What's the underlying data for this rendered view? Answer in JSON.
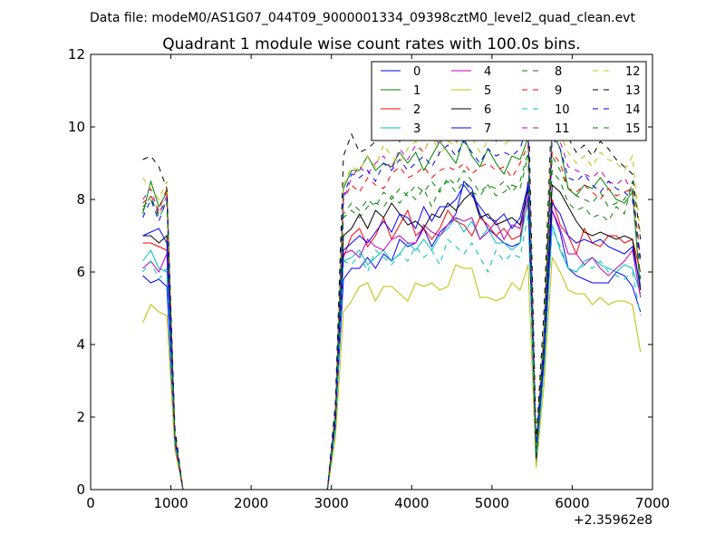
{
  "chart_data": {
    "type": "line",
    "suptitle": "Data file: modeM0/AS1G07_044T09_9000001334_09398cztM0_level2_quad_clean.evt",
    "title": "Quadrant 1 module wise count rates with 100.0s bins.",
    "xlabel": "",
    "ylabel": "",
    "x_offset_label": "+2.35962e8",
    "xlim": [
      0,
      7000
    ],
    "ylim": [
      0,
      12
    ],
    "xticks": [
      0,
      1000,
      2000,
      3000,
      4000,
      5000,
      6000,
      7000
    ],
    "yticks": [
      0,
      2,
      4,
      6,
      8,
      10,
      12
    ],
    "grid": false,
    "legend_position": "top-right",
    "legend_columns": 4,
    "x": [
      650,
      750,
      850,
      950,
      1050,
      1150,
      1250,
      1350,
      1450,
      1550,
      1650,
      1750,
      1850,
      1950,
      2050,
      2150,
      2250,
      2350,
      2450,
      2550,
      2650,
      2750,
      2850,
      2950,
      3050,
      3150,
      3250,
      3350,
      3450,
      3550,
      3650,
      3750,
      3850,
      3950,
      4050,
      4150,
      4250,
      4350,
      4450,
      4550,
      4650,
      4750,
      4850,
      4950,
      5050,
      5150,
      5250,
      5350,
      5450,
      5550,
      5650,
      5750,
      5850,
      5950,
      6050,
      6150,
      6250,
      6350,
      6450,
      6550,
      6650,
      6750,
      6850
    ],
    "series": [
      {
        "name": "0",
        "color": "#0000ff",
        "dash": "solid",
        "values": [
          5.9,
          5.7,
          5.8,
          5.6,
          1.2,
          0,
          0,
          0,
          0,
          0,
          0,
          0,
          0,
          0,
          0,
          0,
          0,
          0,
          0,
          0,
          0,
          0,
          0,
          0,
          1.8,
          5.8,
          6.1,
          6.1,
          6.4,
          6.1,
          6.5,
          6.3,
          6.9,
          6.7,
          6.8,
          7.2,
          6.7,
          7.1,
          7.3,
          7.6,
          8.5,
          8.3,
          7.6,
          7.2,
          7.0,
          6.8,
          6.7,
          6.8,
          8.5,
          1.0,
          3.6,
          7.7,
          7.1,
          6.1,
          5.9,
          5.8,
          5.7,
          5.7,
          5.7,
          6.0,
          5.9,
          5.6,
          4.9
        ]
      },
      {
        "name": "1",
        "color": "#008000",
        "dash": "solid",
        "values": [
          7.6,
          8.5,
          7.8,
          8.2,
          1.5,
          0,
          0,
          0,
          0,
          0,
          0,
          0,
          0,
          0,
          0,
          0,
          0,
          0,
          0,
          0,
          0,
          0,
          0,
          0,
          2.2,
          8.3,
          8.8,
          8.8,
          9.2,
          8.8,
          9.0,
          8.9,
          9.3,
          9.0,
          9.3,
          8.8,
          9.2,
          9.6,
          9.3,
          9.0,
          9.7,
          9.2,
          8.9,
          9.4,
          9.0,
          8.7,
          9.2,
          9.1,
          9.7,
          1.2,
          4.4,
          9.9,
          9.4,
          8.3,
          8.1,
          8.4,
          8.3,
          8.6,
          8.3,
          8.0,
          7.9,
          8.2,
          5.5
        ]
      },
      {
        "name": "2",
        "color": "#ff0000",
        "dash": "solid",
        "values": [
          6.8,
          6.8,
          6.7,
          6.6,
          1.4,
          0,
          0,
          0,
          0,
          0,
          0,
          0,
          0,
          0,
          0,
          0,
          0,
          0,
          0,
          0,
          0,
          0,
          0,
          0,
          1.9,
          6.4,
          7.0,
          7.2,
          6.7,
          7.0,
          7.5,
          6.9,
          7.3,
          7.7,
          7.0,
          7.2,
          6.9,
          7.2,
          7.7,
          7.4,
          7.3,
          7.0,
          7.5,
          7.3,
          7.0,
          7.2,
          6.9,
          7.0,
          7.9,
          0.9,
          3.9,
          8.0,
          7.3,
          7.0,
          6.5,
          7.2,
          6.8,
          6.7,
          7.0,
          7.0,
          6.8,
          6.9,
          6.0
        ]
      },
      {
        "name": "3",
        "color": "#00bfbf",
        "dash": "solid",
        "values": [
          6.3,
          6.6,
          6.1,
          6.0,
          1.3,
          0,
          0,
          0,
          0,
          0,
          0,
          0,
          0,
          0,
          0,
          0,
          0,
          0,
          0,
          0,
          0,
          0,
          0,
          0,
          1.7,
          6.3,
          6.4,
          6.6,
          6.2,
          6.4,
          6.6,
          6.3,
          6.5,
          6.8,
          6.6,
          6.9,
          6.6,
          7.0,
          7.2,
          7.5,
          7.1,
          7.4,
          6.9,
          7.2,
          6.8,
          6.8,
          6.6,
          6.8,
          8.0,
          0.8,
          3.4,
          7.3,
          6.6,
          6.1,
          6.0,
          6.3,
          6.4,
          6.2,
          6.1,
          6.0,
          6.2,
          6.1,
          5.4
        ]
      },
      {
        "name": "4",
        "color": "#bf00bf",
        "dash": "solid",
        "values": [
          6.1,
          6.3,
          6.0,
          6.5,
          1.3,
          0,
          0,
          0,
          0,
          0,
          0,
          0,
          0,
          0,
          0,
          0,
          0,
          0,
          0,
          0,
          0,
          0,
          0,
          0,
          1.8,
          6.5,
          6.6,
          6.4,
          6.9,
          6.7,
          6.6,
          6.9,
          7.0,
          6.8,
          6.8,
          7.3,
          7.1,
          7.0,
          7.3,
          7.5,
          7.4,
          7.5,
          6.9,
          7.1,
          7.4,
          6.9,
          7.3,
          7.2,
          8.1,
          0.9,
          3.6,
          7.7,
          7.2,
          6.5,
          6.5,
          6.2,
          6.4,
          6.1,
          5.9,
          6.1,
          6.3,
          6.6,
          5.3
        ]
      },
      {
        "name": "5",
        "color": "#bfbf00",
        "dash": "solid",
        "values": [
          4.6,
          5.1,
          4.9,
          4.8,
          1.1,
          0,
          0,
          0,
          0,
          0,
          0,
          0,
          0,
          0,
          0,
          0,
          0,
          0,
          0,
          0,
          0,
          0,
          0,
          0,
          1.4,
          4.9,
          5.2,
          5.6,
          5.7,
          5.2,
          5.6,
          5.6,
          5.4,
          5.2,
          5.7,
          5.6,
          5.7,
          5.5,
          5.6,
          6.2,
          6.1,
          6.1,
          5.3,
          5.3,
          5.2,
          5.3,
          5.7,
          5.5,
          6.2,
          0.6,
          2.9,
          6.4,
          6.0,
          5.5,
          5.4,
          5.4,
          5.1,
          5.3,
          5.1,
          5.2,
          5.2,
          5.1,
          3.8
        ]
      },
      {
        "name": "6",
        "color": "#000000",
        "dash": "solid",
        "values": [
          7.0,
          7.0,
          6.8,
          7.0,
          1.4,
          0,
          0,
          0,
          0,
          0,
          0,
          0,
          0,
          0,
          0,
          0,
          0,
          0,
          0,
          0,
          0,
          0,
          0,
          0,
          1.9,
          7.0,
          7.2,
          7.6,
          7.2,
          7.7,
          7.5,
          7.9,
          7.6,
          7.3,
          7.4,
          7.2,
          7.6,
          7.5,
          7.9,
          7.7,
          8.0,
          8.2,
          7.5,
          7.6,
          7.3,
          7.4,
          7.5,
          7.3,
          8.3,
          0.8,
          3.8,
          8.4,
          8.2,
          7.8,
          7.4,
          7.1,
          7.0,
          7.1,
          7.0,
          6.9,
          7.0,
          6.9,
          5.5
        ]
      },
      {
        "name": "7",
        "color": "#0000ff",
        "dash": "solid",
        "values": [
          7.0,
          7.1,
          7.2,
          6.8,
          1.4,
          0,
          0,
          0,
          0,
          0,
          0,
          0,
          0,
          0,
          0,
          0,
          0,
          0,
          0,
          0,
          0,
          0,
          0,
          0,
          1.8,
          6.6,
          6.8,
          7.0,
          6.8,
          7.1,
          7.4,
          7.1,
          7.6,
          7.5,
          7.2,
          7.8,
          7.4,
          7.8,
          7.8,
          8.0,
          8.4,
          8.1,
          7.8,
          7.5,
          7.4,
          7.6,
          7.2,
          7.5,
          8.4,
          0.9,
          3.7,
          7.9,
          7.6,
          7.0,
          6.8,
          6.9,
          6.8,
          6.9,
          6.7,
          6.6,
          6.5,
          6.7,
          5.6
        ]
      },
      {
        "name": "8",
        "color": "#008000",
        "dash": "dash",
        "values": [
          7.8,
          8.0,
          7.6,
          8.0,
          1.5,
          0,
          0,
          0,
          0,
          0,
          0,
          0,
          0,
          0,
          0,
          0,
          0,
          0,
          0,
          0,
          0,
          0,
          0,
          0,
          2.1,
          7.5,
          7.7,
          7.5,
          7.8,
          7.9,
          7.8,
          8.1,
          7.9,
          8.2,
          8.0,
          8.3,
          7.8,
          8.3,
          8.5,
          8.2,
          8.5,
          8.2,
          8.1,
          8.4,
          8.1,
          8.2,
          8.4,
          8.3,
          9.2,
          1.0,
          4.0,
          8.8,
          8.5,
          7.9,
          7.7,
          7.8,
          7.5,
          7.6,
          7.4,
          7.8,
          7.6,
          8.5,
          6.2
        ]
      },
      {
        "name": "9",
        "color": "#ff0000",
        "dash": "dash",
        "values": [
          7.9,
          8.1,
          7.7,
          8.3,
          1.5,
          0,
          0,
          0,
          0,
          0,
          0,
          0,
          0,
          0,
          0,
          0,
          0,
          0,
          0,
          0,
          0,
          0,
          0,
          0,
          2.1,
          8.0,
          8.4,
          8.2,
          8.6,
          8.4,
          8.3,
          8.7,
          8.9,
          8.6,
          8.7,
          8.9,
          8.6,
          8.8,
          8.9,
          8.8,
          9.0,
          8.7,
          8.9,
          9.0,
          8.8,
          8.9,
          8.6,
          9.0,
          9.5,
          1.1,
          4.3,
          9.3,
          9.0,
          8.3,
          8.2,
          8.4,
          8.2,
          8.0,
          8.3,
          8.1,
          8.2,
          8.3,
          6.4
        ]
      },
      {
        "name": "10",
        "color": "#00bfbf",
        "dash": "dash",
        "values": [
          6.0,
          6.3,
          5.8,
          6.1,
          1.3,
          0,
          0,
          0,
          0,
          0,
          0,
          0,
          0,
          0,
          0,
          0,
          0,
          0,
          0,
          0,
          0,
          0,
          0,
          0,
          1.7,
          6.3,
          6.2,
          6.5,
          6.0,
          6.6,
          6.4,
          6.2,
          6.5,
          6.3,
          6.7,
          6.4,
          6.6,
          6.2,
          6.9,
          6.7,
          6.5,
          6.8,
          6.4,
          6.0,
          6.6,
          6.3,
          6.5,
          6.4,
          7.6,
          0.8,
          3.3,
          7.2,
          6.7,
          6.1,
          6.0,
          6.2,
          6.1,
          6.3,
          6.0,
          5.9,
          5.8,
          6.0,
          4.8
        ]
      },
      {
        "name": "11",
        "color": "#bf00bf",
        "dash": "dash",
        "values": [
          8.0,
          8.3,
          7.6,
          8.1,
          1.5,
          0,
          0,
          0,
          0,
          0,
          0,
          0,
          0,
          0,
          0,
          0,
          0,
          0,
          0,
          0,
          0,
          0,
          0,
          0,
          2.1,
          8.0,
          8.6,
          8.9,
          8.7,
          9.0,
          9.2,
          8.8,
          9.4,
          9.1,
          9.5,
          9.3,
          9.8,
          9.5,
          10.0,
          9.6,
          10.2,
          10.4,
          9.8,
          9.9,
          9.6,
          9.8,
          9.7,
          10.0,
          10.2,
          1.2,
          4.5,
          10.1,
          9.6,
          8.9,
          8.8,
          8.7,
          8.6,
          8.8,
          8.5,
          8.4,
          8.6,
          8.2,
          6.4
        ]
      },
      {
        "name": "12",
        "color": "#bfbf00",
        "dash": "dash",
        "values": [
          8.6,
          8.3,
          8.0,
          8.5,
          1.6,
          0,
          0,
          0,
          0,
          0,
          0,
          0,
          0,
          0,
          0,
          0,
          0,
          0,
          0,
          0,
          0,
          0,
          0,
          0,
          2.2,
          8.4,
          8.9,
          8.8,
          9.2,
          8.9,
          9.5,
          9.2,
          9.0,
          9.4,
          9.6,
          9.3,
          9.8,
          9.2,
          9.6,
          9.5,
          10.0,
          9.7,
          9.3,
          9.6,
          9.8,
          9.5,
          9.7,
          9.6,
          10.6,
          1.2,
          4.6,
          10.4,
          9.8,
          9.3,
          9.0,
          9.2,
          8.9,
          9.3,
          9.1,
          9.0,
          8.8,
          9.2,
          7.0
        ]
      },
      {
        "name": "13",
        "color": "#000000",
        "dash": "dash",
        "values": [
          9.1,
          9.2,
          8.9,
          8.3,
          1.7,
          0,
          0,
          0,
          0,
          0,
          0,
          0,
          0,
          0,
          0,
          0,
          0,
          0,
          0,
          0,
          0,
          0,
          0,
          0,
          2.4,
          9.2,
          9.8,
          9.3,
          9.4,
          9.6,
          9.8,
          10.2,
          9.6,
          10.0,
          9.7,
          10.3,
          9.9,
          10.1,
          10.4,
          10.1,
          10.6,
          10.2,
          10.4,
          10.0,
          10.3,
          10.1,
          10.2,
          10.4,
          11.1,
          1.3,
          5.0,
          10.8,
          10.2,
          9.7,
          9.3,
          9.5,
          9.2,
          9.6,
          9.4,
          9.1,
          8.9,
          8.7,
          6.9
        ]
      },
      {
        "name": "14",
        "color": "#0000ff",
        "dash": "dash",
        "values": [
          7.5,
          8.0,
          7.4,
          8.0,
          1.5,
          0,
          0,
          0,
          0,
          0,
          0,
          0,
          0,
          0,
          0,
          0,
          0,
          0,
          0,
          0,
          0,
          0,
          0,
          0,
          2.1,
          8.1,
          8.7,
          8.6,
          8.8,
          8.5,
          9.0,
          8.8,
          9.1,
          8.8,
          9.0,
          9.2,
          8.9,
          9.3,
          9.5,
          9.2,
          9.6,
          9.3,
          9.0,
          9.4,
          9.2,
          9.3,
          9.2,
          9.4,
          10.1,
          1.1,
          4.2,
          9.7,
          9.4,
          8.6,
          8.5,
          8.7,
          8.4,
          8.2,
          8.5,
          8.3,
          8.2,
          8.0,
          6.3
        ]
      },
      {
        "name": "15",
        "color": "#008000",
        "dash": "dash",
        "values": [
          7.7,
          8.1,
          7.5,
          7.9,
          1.5,
          0,
          0,
          0,
          0,
          0,
          0,
          0,
          0,
          0,
          0,
          0,
          0,
          0,
          0,
          0,
          0,
          0,
          0,
          0,
          2.0,
          7.6,
          7.9,
          7.7,
          8.0,
          7.8,
          8.2,
          8.0,
          8.3,
          8.1,
          8.4,
          8.2,
          8.5,
          8.2,
          8.6,
          8.4,
          8.8,
          8.5,
          8.2,
          8.4,
          8.3,
          8.5,
          8.2,
          8.5,
          9.3,
          1.0,
          4.0,
          9.2,
          8.8,
          8.3,
          8.1,
          8.0,
          7.9,
          8.2,
          7.8,
          7.9,
          8.0,
          8.4,
          5.8
        ]
      }
    ]
  }
}
